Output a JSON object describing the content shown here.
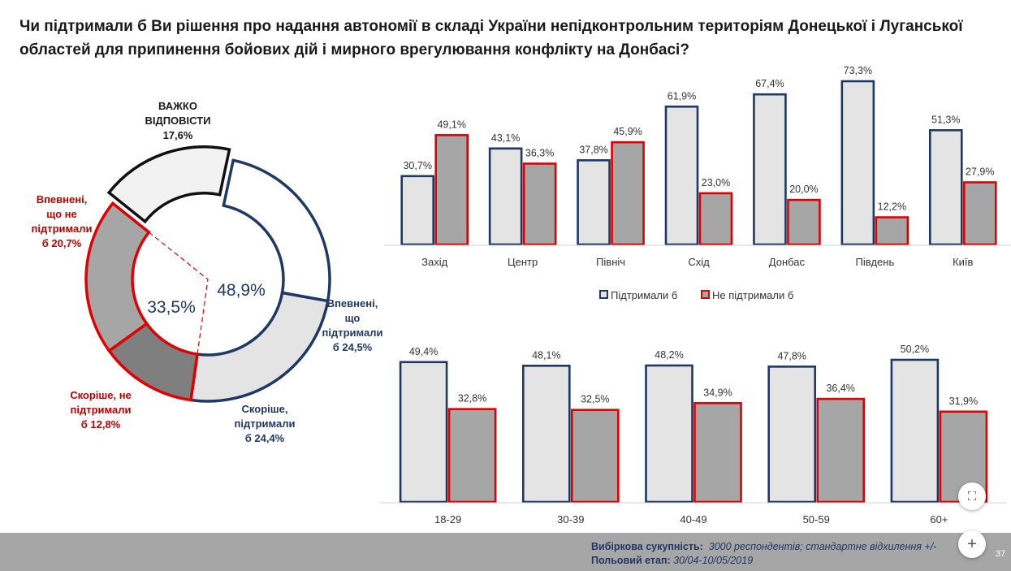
{
  "title": "Чи підтримали б Ви рішення про надання автономії в складі України непідконтрольним територіям Донецької і Луганської областей для припинення бойових дій і мирного врегулювання конфлікту на Донбасі?",
  "colors": {
    "support_border": "#1f3864",
    "oppose_border": "#e00000",
    "support_fill": "#e4e4e4",
    "oppose_fill": "#a6a6a6",
    "dk_border": "#111111",
    "dk_fill": "#f2f2f2",
    "ring_dark": "#7f7f7f",
    "ring_mid": "#a6a6a6",
    "ring_light": "#e4e4e4",
    "oppose_label": "#c00000",
    "support_label": "#1f3864"
  },
  "chart_data": [
    {
      "type": "donut",
      "center_left_label": "33,5%",
      "center_right_label": "48,9%",
      "slices": [
        {
          "name": "Впевнені, що підтримали б",
          "value": 24.5,
          "label_lines": [
            "Впевнені,",
            "що",
            "підтримали",
            "б 24,5%"
          ]
        },
        {
          "name": "Скоріше, підтримали б",
          "value": 24.4,
          "label_lines": [
            "Скоріше,",
            "підтримали",
            "б 24,4%"
          ]
        },
        {
          "name": "Скоріше, не підтримали б",
          "value": 12.8,
          "label_lines": [
            "Скоріше, не",
            "підтримали",
            "б 12,8%"
          ]
        },
        {
          "name": "Впевнені, що не підтримали б",
          "value": 20.7,
          "label_lines": [
            "Впевнені,",
            "що не",
            "підтримали",
            "б  20,7%"
          ]
        },
        {
          "name": "Важко відповісти",
          "value": 17.6,
          "label_lines": [
            "ВАЖКО",
            "ВІДПОВІСТИ",
            "17,6%"
          ]
        }
      ]
    },
    {
      "type": "bar",
      "categories": [
        "Захід",
        "Центр",
        "Північ",
        "Схід",
        "Донбас",
        "Південь",
        "Київ"
      ],
      "series": [
        {
          "name": "Підтримали б",
          "values": [
            30.7,
            43.1,
            37.8,
            61.9,
            67.4,
            73.3,
            51.3
          ],
          "labels": [
            "30,7%",
            "43,1%",
            "37,8%",
            "61,9%",
            "67,4%",
            "73,3%",
            "51,3%"
          ]
        },
        {
          "name": "Не підтримали б",
          "values": [
            49.1,
            36.3,
            45.9,
            23.0,
            20.0,
            12.2,
            27.9
          ],
          "labels": [
            "49,1%",
            "36,3%",
            "45,9%",
            "23,0%",
            "20,0%",
            "12,2%",
            "27,9%"
          ]
        }
      ],
      "legend": "bottom",
      "ylim": [
        0,
        80
      ]
    },
    {
      "type": "bar",
      "categories": [
        "18-29",
        "30-39",
        "40-49",
        "50-59",
        "60+"
      ],
      "series": [
        {
          "name": "Підтримали б",
          "values": [
            49.4,
            48.1,
            48.2,
            47.8,
            50.2
          ],
          "labels": [
            "49,4%",
            "48,1%",
            "48,2%",
            "47,8%",
            "50,2%"
          ]
        },
        {
          "name": "Не підтримали б",
          "values": [
            32.8,
            32.5,
            34.9,
            36.4,
            31.9
          ],
          "labels": [
            "32,8%",
            "32,5%",
            "34,9%",
            "36,4%",
            "31,9%"
          ]
        }
      ],
      "ylim": [
        0,
        60
      ]
    }
  ],
  "footer": {
    "sample_label": "Вибіркова сукупність:",
    "sample_value": "3000  респондентів; стандартне  відхилення +/-",
    "field_label": "Польовий етап:",
    "field_value": "30/04-10/05/2019",
    "page_number": "37"
  },
  "buttons": {
    "fit_icon": "⛶",
    "zoom_icon": "+"
  }
}
